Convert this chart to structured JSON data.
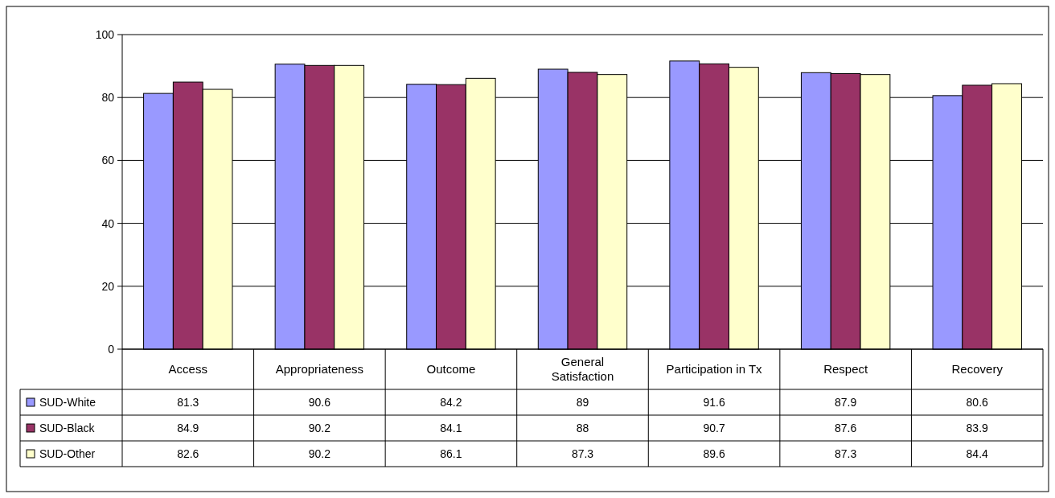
{
  "chart_data": {
    "type": "bar",
    "categories": [
      "Access",
      "Appropriateness",
      "Outcome",
      "General Satisfaction",
      "Participation in Tx",
      "Respect",
      "Recovery"
    ],
    "series": [
      {
        "name": "SUD-White",
        "color": "#9999ff",
        "values": [
          81.3,
          90.6,
          84.2,
          89,
          91.6,
          87.9,
          80.6
        ]
      },
      {
        "name": "SUD-Black",
        "color": "#993366",
        "values": [
          84.9,
          90.2,
          84.1,
          88,
          90.7,
          87.6,
          83.9
        ]
      },
      {
        "name": "SUD-Other",
        "color": "#ffffcc",
        "values": [
          82.6,
          90.2,
          86.1,
          87.3,
          89.6,
          87.3,
          84.4
        ]
      }
    ],
    "ylim": [
      0,
      100
    ],
    "yticks": [
      0,
      20,
      40,
      60,
      80,
      100
    ],
    "grid": "y",
    "data_labels": true,
    "legend": "bottom left"
  }
}
